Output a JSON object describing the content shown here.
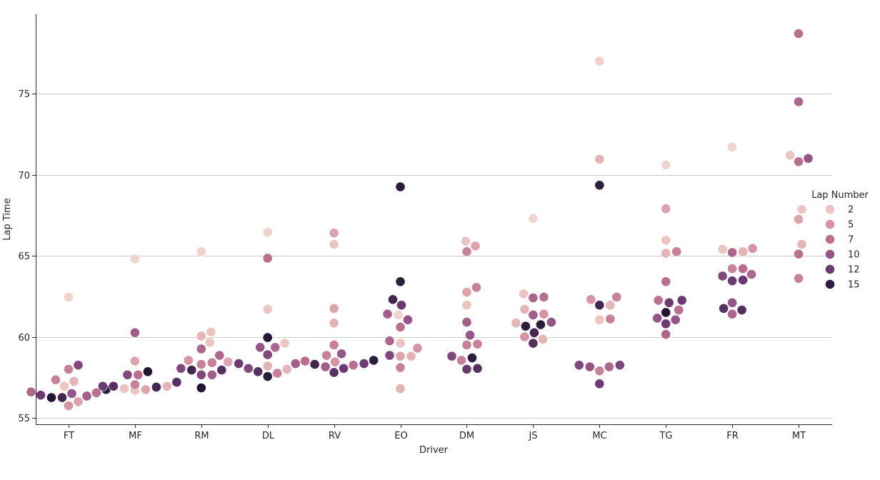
{
  "chart_data": {
    "type": "scatter",
    "subtype": "swarm",
    "xlabel": "Driver",
    "ylabel": "Lap Time",
    "categories": [
      "FT",
      "MF",
      "RM",
      "DL",
      "RV",
      "EO",
      "DM",
      "JS",
      "MC",
      "TG",
      "FR",
      "MT"
    ],
    "ylim": [
      54.6,
      79.5
    ],
    "yticks": [
      55,
      60,
      65,
      70,
      75
    ],
    "grid": "horizontal",
    "legend": {
      "title": "Lap Number",
      "placement": "right",
      "entries": [
        {
          "label": "2",
          "color": "#ebc5bf"
        },
        {
          "label": "5",
          "color": "#d494a4"
        },
        {
          "label": "7",
          "color": "#b9708f"
        },
        {
          "label": "10",
          "color": "#965587"
        },
        {
          "label": "12",
          "color": "#6b3a71"
        },
        {
          "label": "15",
          "color": "#2d1e3e"
        }
      ]
    },
    "color_scale": {
      "min": 1,
      "max": 16,
      "stops": [
        {
          "v": 1,
          "color": "#f0d3cc"
        },
        {
          "v": 2,
          "color": "#ebc5bf"
        },
        {
          "v": 5,
          "color": "#d494a4"
        },
        {
          "v": 7,
          "color": "#b9708f"
        },
        {
          "v": 10,
          "color": "#965587"
        },
        {
          "v": 12,
          "color": "#6b3a71"
        },
        {
          "v": 15,
          "color": "#2d1e3e"
        },
        {
          "v": 16,
          "color": "#221630"
        }
      ]
    },
    "points": [
      {
        "driver": "FT",
        "lap": 15,
        "time": 56.75
      },
      {
        "driver": "FT",
        "lap": 7,
        "time": 56.55
      },
      {
        "driver": "FT",
        "lap": 9,
        "time": 56.35
      },
      {
        "driver": "FT",
        "lap": 4,
        "time": 56.0
      },
      {
        "driver": "FT",
        "lap": 3,
        "time": 57.25
      },
      {
        "driver": "FT",
        "lap": 11,
        "time": 58.25
      },
      {
        "driver": "FT",
        "lap": 10,
        "time": 56.5
      },
      {
        "driver": "FT",
        "lap": 5,
        "time": 55.75
      },
      {
        "driver": "FT",
        "lap": 6,
        "time": 58.0
      },
      {
        "driver": "FT",
        "lap": 1,
        "time": 62.45
      },
      {
        "driver": "FT",
        "lap": 2,
        "time": 56.95
      },
      {
        "driver": "FT",
        "lap": 14,
        "time": 56.25
      },
      {
        "driver": "FT",
        "lap": 6,
        "time": 57.35
      },
      {
        "driver": "FT",
        "lap": 16,
        "time": 56.25
      },
      {
        "driver": "FT",
        "lap": 8,
        "time": 56.6
      },
      {
        "driver": "FT",
        "lap": 12,
        "time": 56.4
      },
      {
        "driver": "MF",
        "lap": 13,
        "time": 57.2
      },
      {
        "driver": "MF",
        "lap": 13,
        "time": 56.95
      },
      {
        "driver": "MF",
        "lap": 14,
        "time": 56.9
      },
      {
        "driver": "MF",
        "lap": 4,
        "time": 56.75
      },
      {
        "driver": "MF",
        "lap": 16,
        "time": 57.85
      },
      {
        "driver": "MF",
        "lap": 2,
        "time": 56.7
      },
      {
        "driver": "MF",
        "lap": 7,
        "time": 57.65
      },
      {
        "driver": "MF",
        "lap": 9,
        "time": 60.25
      },
      {
        "driver": "MF",
        "lap": 1,
        "time": 64.8
      },
      {
        "driver": "MF",
        "lap": 4,
        "time": 58.5
      },
      {
        "driver": "MF",
        "lap": 2,
        "time": 56.8
      },
      {
        "driver": "MF",
        "lap": 11,
        "time": 57.65
      },
      {
        "driver": "MF",
        "lap": 3,
        "time": 56.95
      },
      {
        "driver": "MF",
        "lap": 6,
        "time": 57.05
      },
      {
        "driver": "MF",
        "lap": 12,
        "time": 56.95
      },
      {
        "driver": "RM",
        "lap": 11,
        "time": 58.05
      },
      {
        "driver": "RM",
        "lap": 8,
        "time": 58.85
      },
      {
        "driver": "RM",
        "lap": 11,
        "time": 57.65
      },
      {
        "driver": "RM",
        "lap": 6,
        "time": 58.4
      },
      {
        "driver": "RM",
        "lap": 2,
        "time": 60.3
      },
      {
        "driver": "RM",
        "lap": 2,
        "time": 59.65
      },
      {
        "driver": "RM",
        "lap": 1,
        "time": 65.25
      },
      {
        "driver": "RM",
        "lap": 3,
        "time": 60.05
      },
      {
        "driver": "RM",
        "lap": 8,
        "time": 59.25
      },
      {
        "driver": "RM",
        "lap": 6,
        "time": 58.3
      },
      {
        "driver": "RM",
        "lap": 9,
        "time": 57.65
      },
      {
        "driver": "RM",
        "lap": 16,
        "time": 56.85
      },
      {
        "driver": "RM",
        "lap": 5,
        "time": 58.55
      },
      {
        "driver": "RM",
        "lap": 14,
        "time": 57.95
      },
      {
        "driver": "RM",
        "lap": 13,
        "time": 57.95
      },
      {
        "driver": "RM",
        "lap": 4,
        "time": 58.45
      },
      {
        "driver": "DL",
        "lap": 11,
        "time": 58.05
      },
      {
        "driver": "DL",
        "lap": 9,
        "time": 58.35
      },
      {
        "driver": "DL",
        "lap": 6,
        "time": 57.75
      },
      {
        "driver": "DL",
        "lap": 8,
        "time": 59.35
      },
      {
        "driver": "DL",
        "lap": 1,
        "time": 66.45
      },
      {
        "driver": "DL",
        "lap": 7,
        "time": 64.85
      },
      {
        "driver": "DL",
        "lap": 2,
        "time": 61.7
      },
      {
        "driver": "DL",
        "lap": 16,
        "time": 59.95
      },
      {
        "driver": "DL",
        "lap": 11,
        "time": 58.9
      },
      {
        "driver": "DL",
        "lap": 3,
        "time": 58.2
      },
      {
        "driver": "DL",
        "lap": 15,
        "time": 57.55
      },
      {
        "driver": "DL",
        "lap": 10,
        "time": 59.35
      },
      {
        "driver": "DL",
        "lap": 13,
        "time": 57.85
      },
      {
        "driver": "DL",
        "lap": 2,
        "time": 59.6
      },
      {
        "driver": "DL",
        "lap": 3,
        "time": 58.0
      },
      {
        "driver": "DL",
        "lap": 12,
        "time": 58.35
      },
      {
        "driver": "RV",
        "lap": 7,
        "time": 58.5
      },
      {
        "driver": "RV",
        "lap": 14,
        "time": 58.3
      },
      {
        "driver": "RV",
        "lap": 10,
        "time": 58.95
      },
      {
        "driver": "RV",
        "lap": 12,
        "time": 58.05
      },
      {
        "driver": "RV",
        "lap": 4,
        "time": 66.4
      },
      {
        "driver": "RV",
        "lap": 2,
        "time": 65.7
      },
      {
        "driver": "RV",
        "lap": 4,
        "time": 61.75
      },
      {
        "driver": "RV",
        "lap": 3,
        "time": 60.85
      },
      {
        "driver": "RV",
        "lap": 6,
        "time": 59.5
      },
      {
        "driver": "RV",
        "lap": 5,
        "time": 58.45
      },
      {
        "driver": "RV",
        "lap": 13,
        "time": 57.8
      },
      {
        "driver": "RV",
        "lap": 6,
        "time": 58.85
      },
      {
        "driver": "RV",
        "lap": 9,
        "time": 58.15
      },
      {
        "driver": "RV",
        "lap": 7,
        "time": 58.25
      },
      {
        "driver": "RV",
        "lap": 12,
        "time": 58.35
      },
      {
        "driver": "RV",
        "lap": 15,
        "time": 58.55
      },
      {
        "driver": "EO",
        "lap": 5,
        "time": 59.3
      },
      {
        "driver": "EO",
        "lap": 4,
        "time": 58.8
      },
      {
        "driver": "EO",
        "lap": 8,
        "time": 59.75
      },
      {
        "driver": "EO",
        "lap": 10,
        "time": 61.05
      },
      {
        "driver": "EO",
        "lap": 15,
        "time": 69.25
      },
      {
        "driver": "EO",
        "lap": 12,
        "time": 61.95
      },
      {
        "driver": "EO",
        "lap": 15,
        "time": 63.4
      },
      {
        "driver": "EO",
        "lap": 1,
        "time": 61.35
      },
      {
        "driver": "EO",
        "lap": 7,
        "time": 60.6
      },
      {
        "driver": "EO",
        "lap": 2,
        "time": 59.6
      },
      {
        "driver": "EO",
        "lap": 3,
        "time": 58.8
      },
      {
        "driver": "EO",
        "lap": 6,
        "time": 58.1
      },
      {
        "driver": "EO",
        "lap": 3,
        "time": 56.8
      },
      {
        "driver": "EO",
        "lap": 14,
        "time": 62.3
      },
      {
        "driver": "EO",
        "lap": 9,
        "time": 61.4
      },
      {
        "driver": "EO",
        "lap": 11,
        "time": 58.85
      },
      {
        "driver": "DM",
        "lap": 4,
        "time": 65.6
      },
      {
        "driver": "DM",
        "lap": 6,
        "time": 63.05
      },
      {
        "driver": "DM",
        "lap": 6,
        "time": 59.55
      },
      {
        "driver": "DM",
        "lap": 11,
        "time": 58.8
      },
      {
        "driver": "DM",
        "lap": 13,
        "time": 58.05
      },
      {
        "driver": "DM",
        "lap": 2,
        "time": 65.9
      },
      {
        "driver": "DM",
        "lap": 6,
        "time": 65.25
      },
      {
        "driver": "DM",
        "lap": 4,
        "time": 62.75
      },
      {
        "driver": "DM",
        "lap": 2,
        "time": 61.95
      },
      {
        "driver": "DM",
        "lap": 9,
        "time": 60.9
      },
      {
        "driver": "DM",
        "lap": 10,
        "time": 60.1
      },
      {
        "driver": "DM",
        "lap": 6,
        "time": 59.5
      },
      {
        "driver": "DM",
        "lap": 6,
        "time": 58.55
      },
      {
        "driver": "DM",
        "lap": 12,
        "time": 58.0
      },
      {
        "driver": "DM",
        "lap": 15,
        "time": 58.7
      },
      {
        "driver": "JS",
        "lap": 10,
        "time": 60.9
      },
      {
        "driver": "JS",
        "lap": 7,
        "time": 62.45
      },
      {
        "driver": "JS",
        "lap": 5,
        "time": 61.4
      },
      {
        "driver": "JS",
        "lap": 3,
        "time": 59.85
      },
      {
        "driver": "JS",
        "lap": 15,
        "time": 60.75
      },
      {
        "driver": "JS",
        "lap": 1,
        "time": 67.3
      },
      {
        "driver": "JS",
        "lap": 8,
        "time": 62.4
      },
      {
        "driver": "JS",
        "lap": 9,
        "time": 61.35
      },
      {
        "driver": "JS",
        "lap": 14,
        "time": 60.25
      },
      {
        "driver": "JS",
        "lap": 13,
        "time": 59.6
      },
      {
        "driver": "JS",
        "lap": 2,
        "time": 62.65
      },
      {
        "driver": "JS",
        "lap": 3,
        "time": 61.7
      },
      {
        "driver": "JS",
        "lap": 15,
        "time": 60.65
      },
      {
        "driver": "JS",
        "lap": 5,
        "time": 60.0
      },
      {
        "driver": "JS",
        "lap": 3,
        "time": 60.85
      },
      {
        "driver": "MC",
        "lap": 11,
        "time": 58.25
      },
      {
        "driver": "MC",
        "lap": 6,
        "time": 62.45
      },
      {
        "driver": "MC",
        "lap": 14,
        "time": 61.95
      },
      {
        "driver": "MC",
        "lap": 6,
        "time": 61.1
      },
      {
        "driver": "MC",
        "lap": 8,
        "time": 58.15
      },
      {
        "driver": "MC",
        "lap": 1,
        "time": 77.0
      },
      {
        "driver": "MC",
        "lap": 3,
        "time": 70.95
      },
      {
        "driver": "MC",
        "lap": 15,
        "time": 69.35
      },
      {
        "driver": "MC",
        "lap": 3,
        "time": 61.95
      },
      {
        "driver": "MC",
        "lap": 2,
        "time": 61.05
      },
      {
        "driver": "MC",
        "lap": 6,
        "time": 57.9
      },
      {
        "driver": "MC",
        "lap": 12,
        "time": 57.1
      },
      {
        "driver": "MC",
        "lap": 5,
        "time": 62.3
      },
      {
        "driver": "MC",
        "lap": 10,
        "time": 58.15
      },
      {
        "driver": "MC",
        "lap": 11,
        "time": 58.25
      },
      {
        "driver": "TG",
        "lap": 7,
        "time": 62.25
      },
      {
        "driver": "TG",
        "lap": 7,
        "time": 61.65
      },
      {
        "driver": "TG",
        "lap": 6,
        "time": 65.25
      },
      {
        "driver": "TG",
        "lap": 10,
        "time": 61.05
      },
      {
        "driver": "TG",
        "lap": 12,
        "time": 62.1
      },
      {
        "driver": "TG",
        "lap": 1,
        "time": 70.6
      },
      {
        "driver": "TG",
        "lap": 4,
        "time": 67.9
      },
      {
        "driver": "TG",
        "lap": 2,
        "time": 65.95
      },
      {
        "driver": "TG",
        "lap": 3,
        "time": 65.15
      },
      {
        "driver": "TG",
        "lap": 7,
        "time": 63.4
      },
      {
        "driver": "TG",
        "lap": 16,
        "time": 61.5
      },
      {
        "driver": "TG",
        "lap": 12,
        "time": 60.8
      },
      {
        "driver": "TG",
        "lap": 8,
        "time": 60.15
      },
      {
        "driver": "TG",
        "lap": 12,
        "time": 62.25
      },
      {
        "driver": "TG",
        "lap": 10,
        "time": 61.15
      },
      {
        "driver": "FR",
        "lap": 3,
        "time": 65.25
      },
      {
        "driver": "FR",
        "lap": 6,
        "time": 64.2
      },
      {
        "driver": "FR",
        "lap": 12,
        "time": 63.5
      },
      {
        "driver": "FR",
        "lap": 13,
        "time": 61.65
      },
      {
        "driver": "FR",
        "lap": 1,
        "time": 71.7
      },
      {
        "driver": "FR",
        "lap": 8,
        "time": 65.2
      },
      {
        "driver": "FR",
        "lap": 7,
        "time": 64.2
      },
      {
        "driver": "FR",
        "lap": 12,
        "time": 63.45
      },
      {
        "driver": "FR",
        "lap": 10,
        "time": 62.1
      },
      {
        "driver": "FR",
        "lap": 8,
        "time": 61.4
      },
      {
        "driver": "FR",
        "lap": 2,
        "time": 65.4
      },
      {
        "driver": "FR",
        "lap": 11,
        "time": 63.75
      },
      {
        "driver": "FR",
        "lap": 13,
        "time": 61.75
      },
      {
        "driver": "FR",
        "lap": 5,
        "time": 65.45
      },
      {
        "driver": "FR",
        "lap": 8,
        "time": 63.85
      },
      {
        "driver": "MT",
        "lap": 10,
        "time": 71.0
      },
      {
        "driver": "MT",
        "lap": 2,
        "time": 67.85
      },
      {
        "driver": "MT",
        "lap": 3,
        "time": 65.7
      },
      {
        "driver": "MT",
        "lap": 7,
        "time": 78.7
      },
      {
        "driver": "MT",
        "lap": 8,
        "time": 74.5
      },
      {
        "driver": "MT",
        "lap": 7,
        "time": 70.8
      },
      {
        "driver": "MT",
        "lap": 4,
        "time": 67.25
      },
      {
        "driver": "MT",
        "lap": 7,
        "time": 65.1
      },
      {
        "driver": "MT",
        "lap": 6,
        "time": 63.6
      },
      {
        "driver": "MT",
        "lap": 2,
        "time": 71.2
      }
    ]
  }
}
